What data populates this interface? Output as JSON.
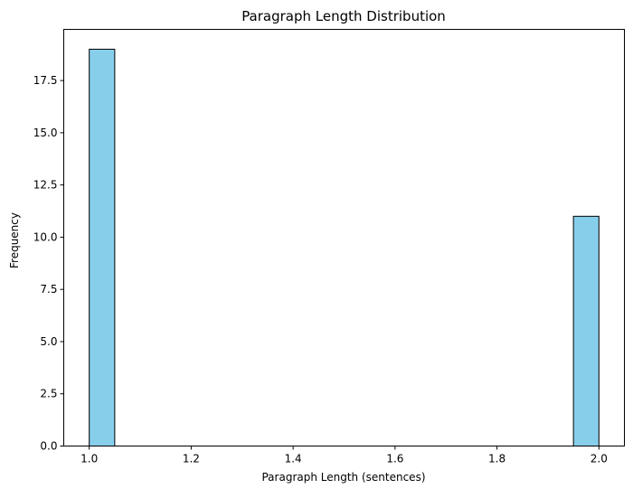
{
  "chart_data": {
    "type": "bar",
    "title": "Paragraph Length Distribution",
    "xlabel": "Paragraph Length (sentences)",
    "ylabel": "Frequency",
    "bins": [
      {
        "x0": 1.0,
        "x1": 1.05,
        "count": 19
      },
      {
        "x0": 1.95,
        "x1": 2.0,
        "count": 11
      }
    ],
    "xlim": [
      0.95,
      2.05
    ],
    "ylim": [
      0,
      19.95
    ],
    "xticks": [
      1.0,
      1.2,
      1.4,
      1.6,
      1.8,
      2.0
    ],
    "xtick_labels": [
      "1.0",
      "1.2",
      "1.4",
      "1.6",
      "1.8",
      "2.0"
    ],
    "yticks": [
      0,
      2.5,
      5,
      7.5,
      10,
      12.5,
      15,
      17.5
    ],
    "ytick_labels": [
      "0.0",
      "2.5",
      "5.0",
      "7.5",
      "10.0",
      "12.5",
      "15.0",
      "17.5"
    ],
    "grid": false,
    "bar_color": "#87CEEB",
    "edge_color": "#000000"
  }
}
